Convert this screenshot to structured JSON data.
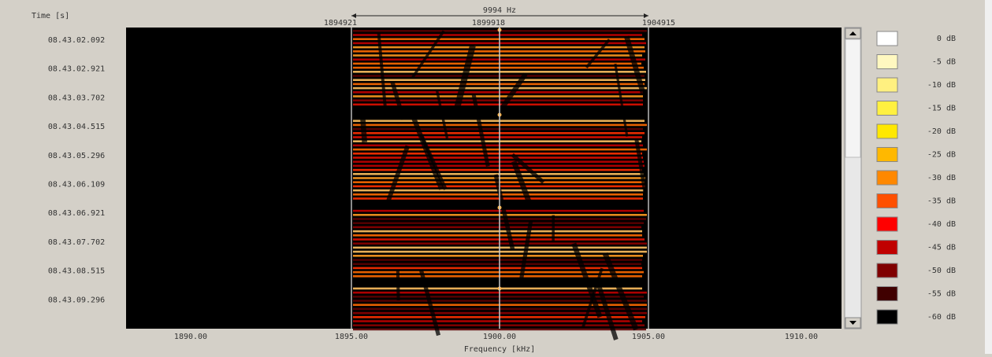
{
  "header": {
    "time_label": "Time [s]",
    "bandwidth": "9994 Hz",
    "freq_left": "1894921",
    "freq_center": "1899918",
    "freq_right": "1904915"
  },
  "time_axis": {
    "labels": [
      "08.43.02.092",
      "08.43.02.921",
      "08.43.03.702",
      "08.43.04.515",
      "08.43.05.296",
      "08.43.06.109",
      "08.43.06.921",
      "08.43.07.702",
      "08.43.08.515",
      "08.43.09.296"
    ]
  },
  "frequency_axis": {
    "title": "Frequency [kHz]",
    "labels": [
      "1890.00",
      "1895.00",
      "1900.00",
      "1905.00",
      "1910.00"
    ]
  },
  "legend": {
    "items": [
      {
        "label": "0 dB",
        "color": "#ffffff"
      },
      {
        "label": "-5 dB",
        "color": "#fff8c0"
      },
      {
        "label": "-10 dB",
        "color": "#fff080"
      },
      {
        "label": "-15 dB",
        "color": "#fff040"
      },
      {
        "label": "-20 dB",
        "color": "#ffe800"
      },
      {
        "label": "-25 dB",
        "color": "#ffb800"
      },
      {
        "label": "-30 dB",
        "color": "#ff8800"
      },
      {
        "label": "-35 dB",
        "color": "#ff5000"
      },
      {
        "label": "-40 dB",
        "color": "#ff0000"
      },
      {
        "label": "-45 dB",
        "color": "#c00000"
      },
      {
        "label": "-50 dB",
        "color": "#800000"
      },
      {
        "label": "-55 dB",
        "color": "#400000"
      },
      {
        "label": "-60 dB",
        "color": "#000000"
      }
    ]
  }
}
